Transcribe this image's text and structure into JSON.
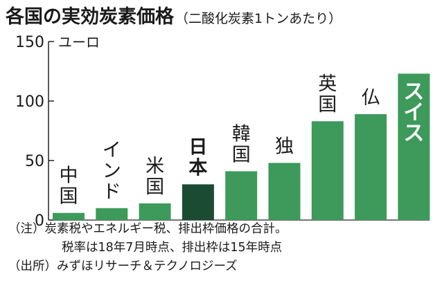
{
  "title": "各国の実効炭素価格",
  "subtitle": "（二酸化炭素1トンあたり）",
  "chart_data": {
    "type": "bar",
    "unit_label": "ユーロ",
    "categories": [
      "中国",
      "インド",
      "米国",
      "日本",
      "韓国",
      "独",
      "英国",
      "仏",
      "スイス"
    ],
    "values": [
      6,
      10,
      14,
      30,
      41,
      48,
      83,
      89,
      123
    ],
    "highlight": [
      "日本",
      "スイス"
    ],
    "ylim": [
      0,
      150
    ],
    "yticks": [
      0,
      50,
      100,
      150
    ],
    "colors": {
      "bar": "#3d9a5a",
      "highlight_bar": "#1c4b33",
      "swiss_label": "#ffffff"
    }
  },
  "notes": [
    "（注）炭素税やエネルギー税、排出枠価格の合計。",
    "税率は18年7月時点、排出枠は15年時点",
    "（出所）みずほリサーチ＆テクノロジーズ"
  ]
}
